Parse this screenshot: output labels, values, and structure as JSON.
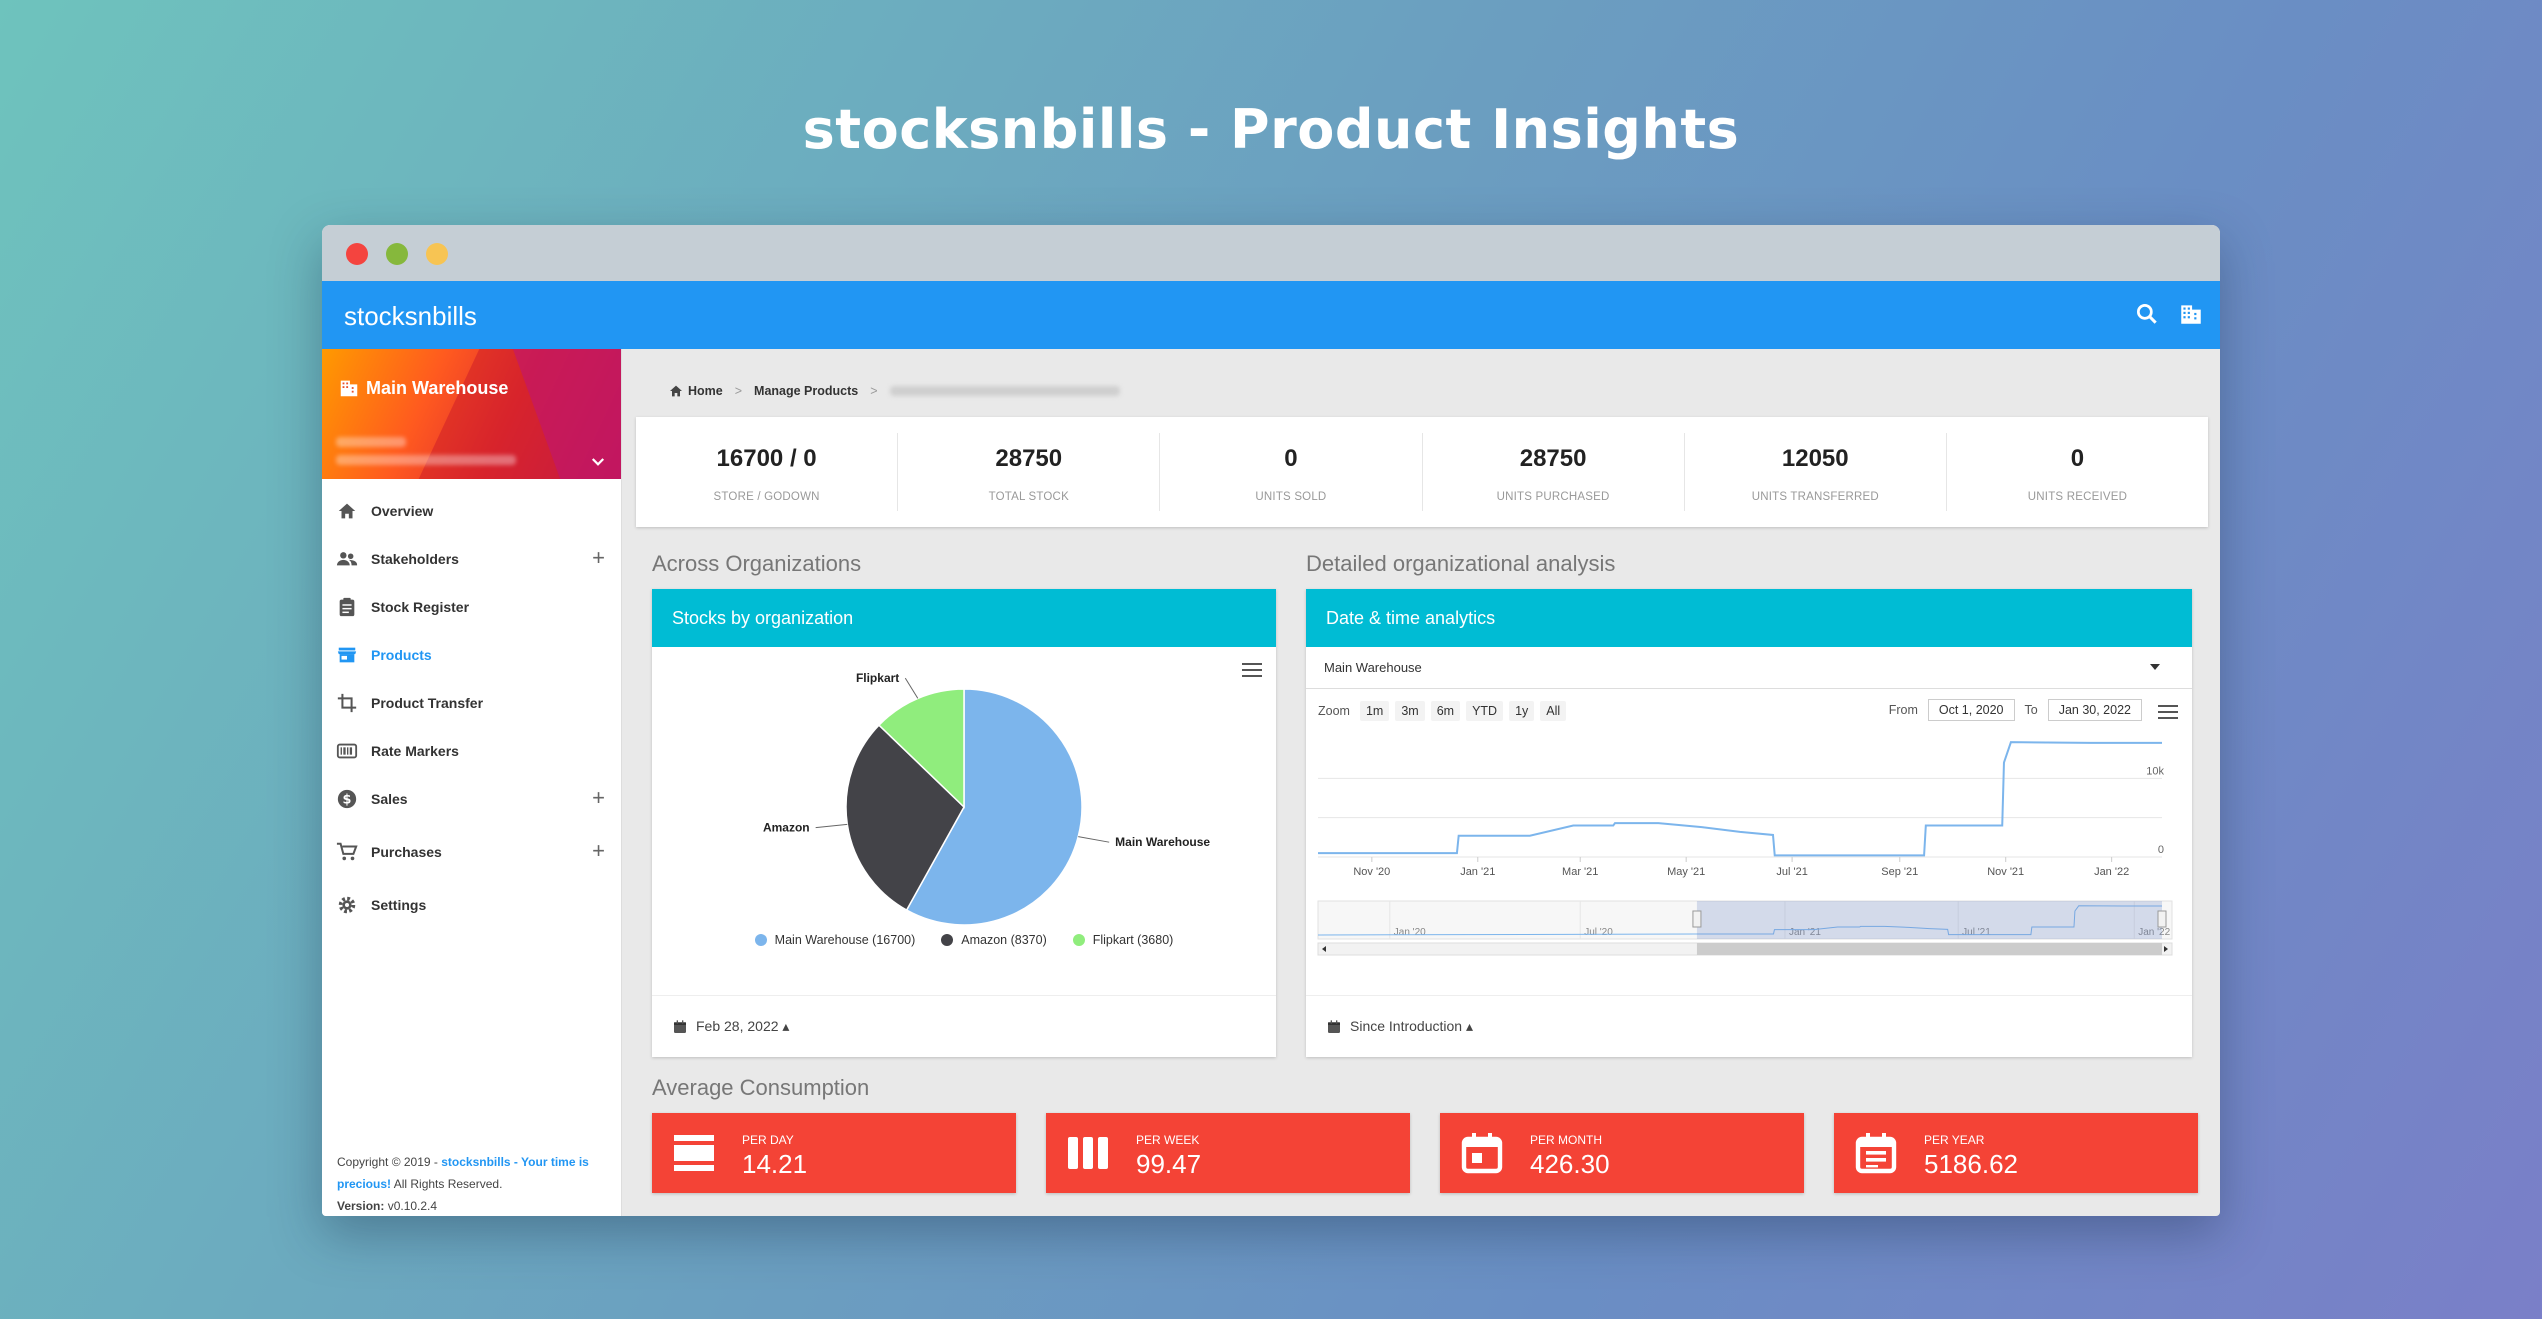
{
  "promo_title": "stocksnbills - Product Insights",
  "appbar": {
    "brand": "stocksnbills"
  },
  "sidebar": {
    "warehouse": "Main Warehouse",
    "items": [
      {
        "label": "Overview",
        "icon": "home-icon"
      },
      {
        "label": "Stakeholders",
        "icon": "people-icon",
        "expand": "+"
      },
      {
        "label": "Stock Register",
        "icon": "clipboard-icon"
      },
      {
        "label": "Products",
        "icon": "store-icon",
        "active": true
      },
      {
        "label": "Product Transfer",
        "icon": "crop-icon"
      },
      {
        "label": "Rate Markers",
        "icon": "barcode-icon"
      },
      {
        "label": "Sales",
        "icon": "dollar-icon",
        "expand": "+"
      },
      {
        "label": "Purchases",
        "icon": "cart-icon",
        "expand": "+"
      },
      {
        "label": "Settings",
        "icon": "gear-icon"
      }
    ],
    "footer": {
      "copyright_prefix": "Copyright © 2019 - ",
      "brand": "stocksnbills - Your time is precious!",
      "rights": " All Rights Reserved.",
      "version_label": "Version:",
      "version": " v0.10.2.4"
    }
  },
  "breadcrumb": {
    "home": "Home",
    "manage": "Manage Products",
    "sep": ">"
  },
  "stats": [
    {
      "value": "16700 / 0",
      "label": "STORE / GODOWN"
    },
    {
      "value": "28750",
      "label": "TOTAL STOCK"
    },
    {
      "value": "0",
      "label": "UNITS SOLD"
    },
    {
      "value": "28750",
      "label": "UNITS PURCHASED"
    },
    {
      "value": "12050",
      "label": "UNITS TRANSFERRED"
    },
    {
      "value": "0",
      "label": "UNITS RECEIVED"
    }
  ],
  "sections": {
    "across": "Across Organizations",
    "detailed": "Detailed organizational analysis",
    "average": "Average Consumption"
  },
  "pie_card": {
    "title": "Stocks by organization",
    "footer": "Feb 28, 2022 ▴"
  },
  "chart_data": [
    {
      "type": "pie",
      "slices": [
        {
          "name": "Main Warehouse",
          "value": 16700,
          "color": "#7cb5ec",
          "legend": "Main Warehouse (16700)"
        },
        {
          "name": "Amazon",
          "value": 8370,
          "color": "#434348",
          "legend": "Amazon (8370)"
        },
        {
          "name": "Flipkart",
          "value": 3680,
          "color": "#90ed7d",
          "legend": "Flipkart (3680)"
        }
      ]
    },
    {
      "type": "line",
      "x_ticks": [
        "Nov '20",
        "Jan '21",
        "Mar '21",
        "May '21",
        "Jul '21",
        "Sep '21",
        "Nov '21",
        "Jan '22"
      ],
      "y_ticks": [
        "0",
        "10k"
      ],
      "ylim": [
        0,
        15000
      ],
      "series": [
        {
          "color": "#7cb5ec",
          "x": [
            "2020-10-01",
            "2020-12-20",
            "2020-12-21",
            "2021-01-31",
            "2021-02-25",
            "2021-02-26",
            "2021-03-20",
            "2021-03-21",
            "2021-04-15",
            "2021-05-10",
            "2021-06-01",
            "2021-06-20",
            "2021-06-21",
            "2021-08-20",
            "2021-09-15",
            "2021-09-16",
            "2021-10-30",
            "2021-10-31",
            "2021-11-04",
            "2021-12-20",
            "2022-01-30"
          ],
          "y": [
            500,
            500,
            2700,
            2700,
            4000,
            4000,
            4000,
            4300,
            4300,
            3800,
            3200,
            2800,
            200,
            200,
            200,
            4000,
            4000,
            12000,
            14600,
            14500,
            14500
          ]
        }
      ],
      "navigator_ticks": [
        "Jan '20",
        "Jul '20",
        "Jan '21",
        "Jul '21",
        "Jan '22"
      ]
    }
  ],
  "analytics_card": {
    "title": "Date & time analytics",
    "dropdown": "Main Warehouse",
    "zoom_label": "Zoom",
    "zoom_options": [
      "1m",
      "3m",
      "6m",
      "YTD",
      "1y",
      "All"
    ],
    "from_label": "From",
    "from": "Oct 1, 2020",
    "to_label": "To",
    "to": "Jan 30, 2022",
    "footer": "Since Introduction ▴"
  },
  "average": [
    {
      "label": "PER DAY",
      "value": "14.21",
      "icon": "view-day-icon"
    },
    {
      "label": "PER WEEK",
      "value": "99.47",
      "icon": "view-week-icon"
    },
    {
      "label": "PER MONTH",
      "value": "426.30",
      "icon": "calendar-month-icon"
    },
    {
      "label": "PER YEAR",
      "value": "5186.62",
      "icon": "calendar-year-icon"
    }
  ]
}
